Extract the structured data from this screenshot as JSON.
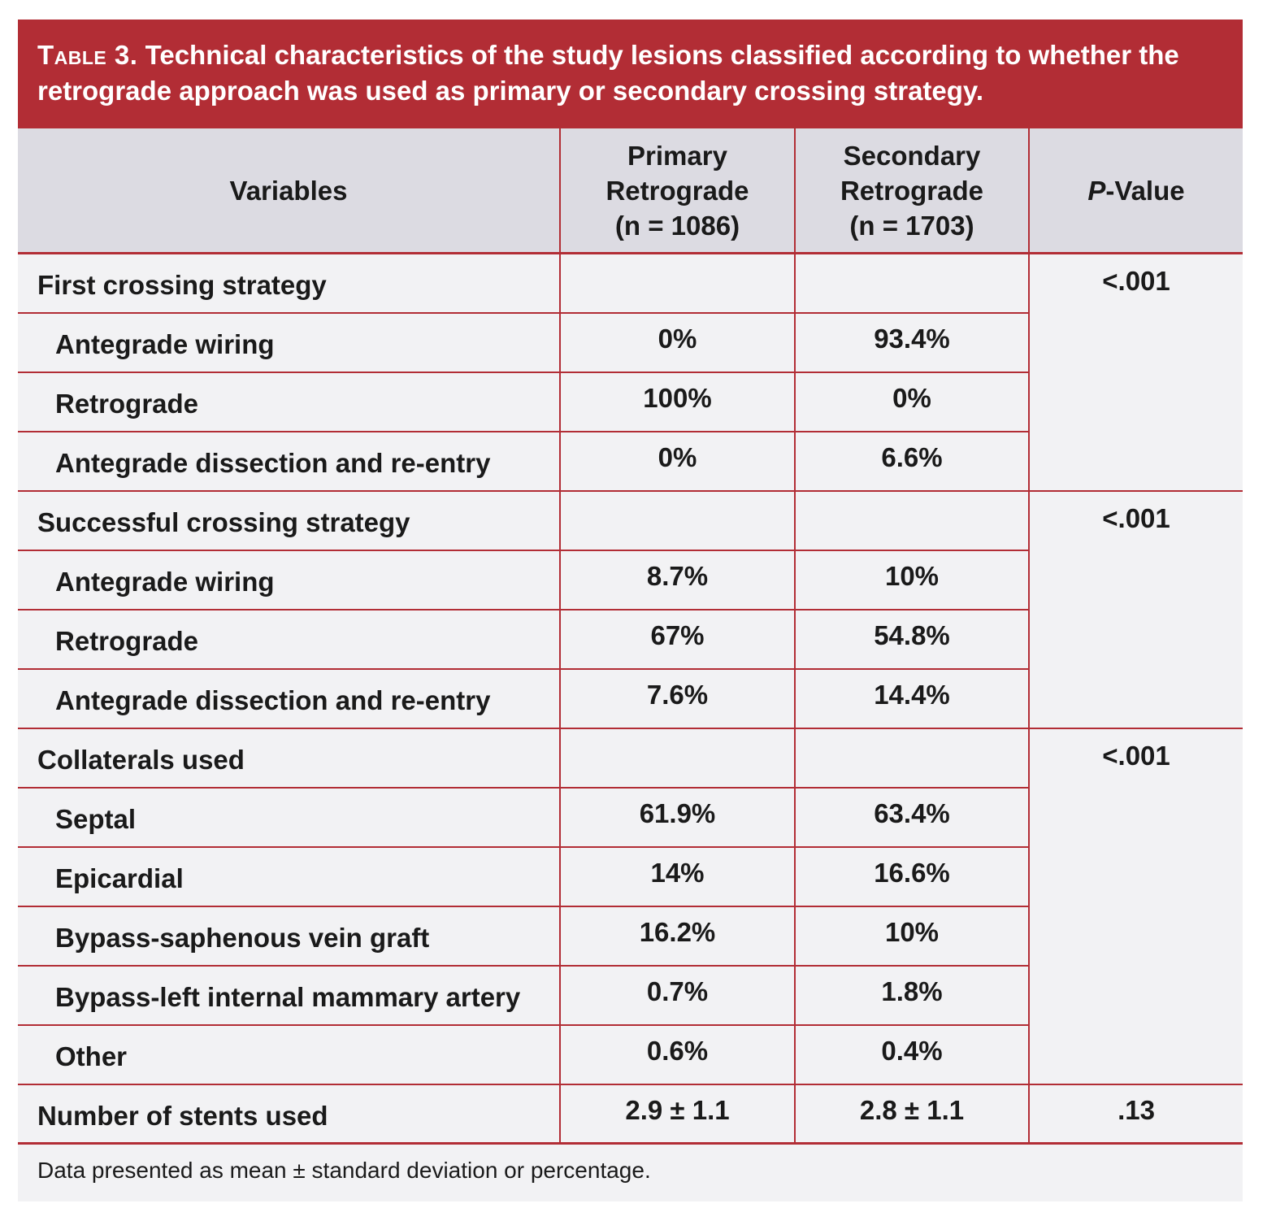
{
  "title": {
    "label": "Table 3.",
    "text": " Technical characteristics of the study lesions classified according to whether the retrograde approach was used as primary or secondary crossing strategy."
  },
  "header": {
    "variables": "Variables",
    "primary": [
      "Primary",
      "Retrograde",
      "(n = 1086)"
    ],
    "secondary": [
      "Secondary",
      "Retrograde",
      "(n = 1703)"
    ],
    "pvalue_p": "P",
    "pvalue_rest": "-Value"
  },
  "groups": [
    {
      "label": "First crossing strategy",
      "pvalue": "<.001",
      "rows": [
        {
          "label": "Antegrade wiring",
          "primary": "0%",
          "secondary": "93.4%"
        },
        {
          "label": "Retrograde",
          "primary": "100%",
          "secondary": "0%"
        },
        {
          "label": "Antegrade dissection and re-entry",
          "primary": "0%",
          "secondary": "6.6%"
        }
      ]
    },
    {
      "label": "Successful crossing strategy",
      "pvalue": "<.001",
      "rows": [
        {
          "label": "Antegrade wiring",
          "primary": "8.7%",
          "secondary": "10%"
        },
        {
          "label": "Retrograde",
          "primary": "67%",
          "secondary": "54.8%"
        },
        {
          "label": "Antegrade dissection and re-entry",
          "primary": "7.6%",
          "secondary": "14.4%"
        }
      ]
    },
    {
      "label": "Collaterals used",
      "pvalue": "<.001",
      "rows": [
        {
          "label": "Septal",
          "primary": "61.9%",
          "secondary": "63.4%"
        },
        {
          "label": "Epicardial",
          "primary": "14%",
          "secondary": "16.6%"
        },
        {
          "label": "Bypass-saphenous vein graft",
          "primary": "16.2%",
          "secondary": "10%"
        },
        {
          "label": "Bypass-left internal mammary artery",
          "primary": "0.7%",
          "secondary": "1.8%"
        },
        {
          "label": "Other",
          "primary": "0.6%",
          "secondary": "0.4%"
        }
      ]
    }
  ],
  "stents": {
    "label": "Number of stents used",
    "primary": "2.9 ± 1.1",
    "secondary": "2.8 ± 1.1",
    "pvalue": ".13"
  },
  "footnote": "Data presented as mean ± standard deviation or percentage.",
  "colors": {
    "accent": "#b22d35",
    "header_bg": "#dcdbe2",
    "row_bg": "#f2f2f4"
  }
}
